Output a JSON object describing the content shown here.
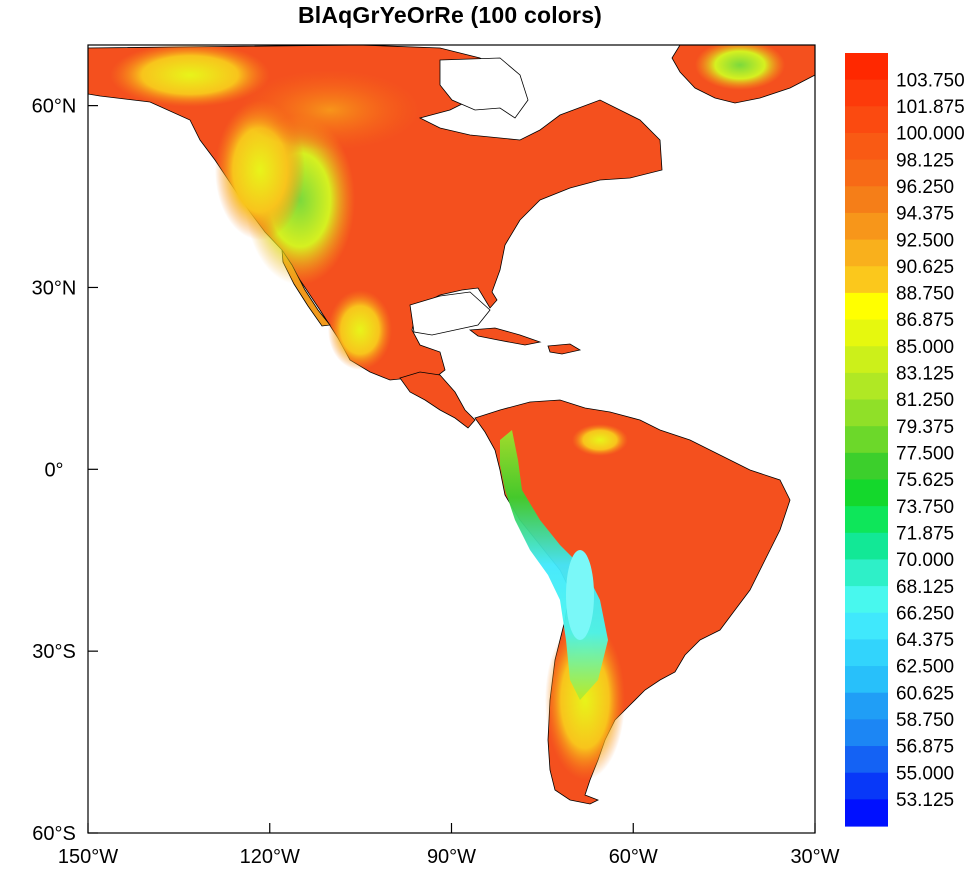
{
  "title": "BlAqGrYeOrRe (100 colors)",
  "map": {
    "projection": "cylindrical equidistant",
    "lon_range": [
      -150,
      -30
    ],
    "lat_range": [
      -60,
      70
    ],
    "x_ticks": [
      {
        "value": -150,
        "label": "150°W"
      },
      {
        "value": -120,
        "label": "120°W"
      },
      {
        "value": -90,
        "label": "90°W"
      },
      {
        "value": -60,
        "label": "60°W"
      },
      {
        "value": -30,
        "label": "30°W"
      }
    ],
    "y_ticks": [
      {
        "value": 60,
        "label": "60°N"
      },
      {
        "value": 30,
        "label": "30°N"
      },
      {
        "value": 0,
        "label": "0°"
      },
      {
        "value": -30,
        "label": "30°S"
      },
      {
        "value": -60,
        "label": "60°S"
      }
    ],
    "colors": {
      "land_dominant": "#f4501e",
      "ocean": "#ffffff",
      "coastline": "#000000"
    }
  },
  "colorbar": {
    "levels": [
      "103.750",
      "101.875",
      "100.000",
      "98.125",
      "96.250",
      "94.375",
      "92.500",
      "90.625",
      "88.750",
      "86.875",
      "85.000",
      "83.125",
      "81.250",
      "79.375",
      "77.500",
      "75.625",
      "73.750",
      "71.875",
      "70.000",
      "68.125",
      "66.250",
      "64.375",
      "62.500",
      "60.625",
      "58.750",
      "56.875",
      "55.000",
      "53.125"
    ],
    "colors_top_to_bottom": [
      "#ff2800",
      "#fd3a0a",
      "#fb4a10",
      "#f95a14",
      "#f76a16",
      "#f57e18",
      "#f7961a",
      "#f9b01c",
      "#fbc81c",
      "#ffff00",
      "#e6f80e",
      "#ccf01a",
      "#b0e824",
      "#90e028",
      "#6cd82a",
      "#3ccf2c",
      "#14d82c",
      "#0ee65a",
      "#12e896",
      "#2ef0c8",
      "#48f8ee",
      "#40e8fc",
      "#32d4fc",
      "#28c0fa",
      "#209ef6",
      "#1c86f4",
      "#1462f4",
      "#0838f8",
      "#0010ff"
    ]
  }
}
